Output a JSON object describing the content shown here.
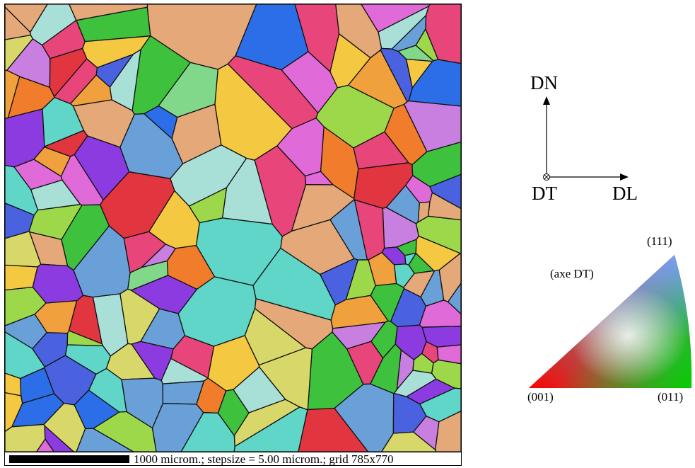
{
  "scale": {
    "text": "1000 microm.; stepsize = 5.00 microm.; grid 785x770"
  },
  "axes": {
    "up": "DN",
    "right": "DL",
    "origin": "DT",
    "origin_marker": "circle-cross-icon"
  },
  "ipf": {
    "axis": "(axe DT)",
    "corner_001": "(001)",
    "corner_011": "(011)",
    "corner_111": "(111)",
    "colors": {
      "red_001": "#ff0000",
      "green_011": "#00d000",
      "blue_111": "#2020ff"
    }
  },
  "grain_colors": [
    "#e8457a",
    "#f07c2c",
    "#e13540",
    "#8b3be0",
    "#4a62e0",
    "#3ec23e",
    "#9dd84a",
    "#e4a879",
    "#e06ad8",
    "#5fd6c8",
    "#6aa0d8",
    "#c87fe0",
    "#f0a03c",
    "#d8d86a",
    "#82d88a",
    "#2c6ee8",
    "#f5c842",
    "#a8e0d8"
  ]
}
